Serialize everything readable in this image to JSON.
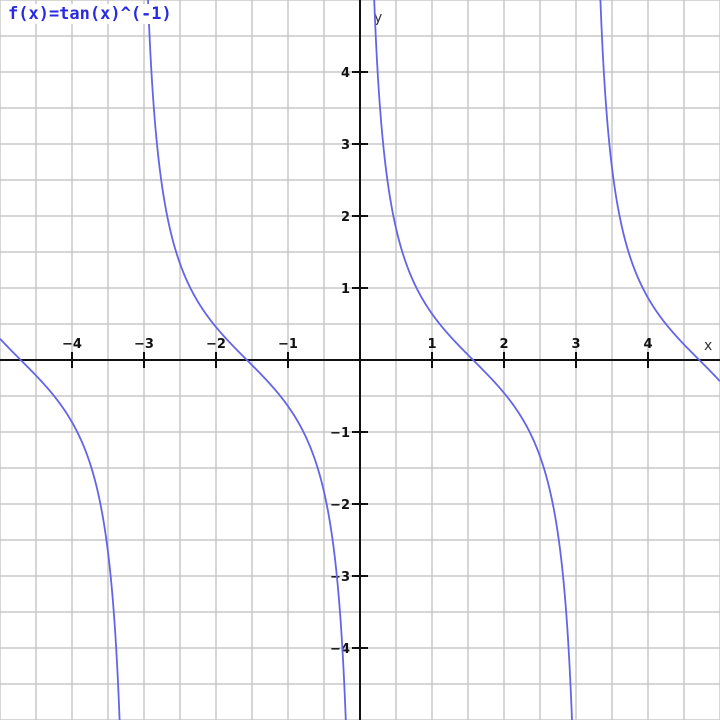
{
  "chart_data": {
    "type": "line",
    "title": "f(x)=tan(x)^(-1)",
    "xlabel": "x",
    "ylabel": "y",
    "xlim": [
      -5,
      5
    ],
    "ylim": [
      -5,
      5
    ],
    "grid": true,
    "grid_step": 0.5,
    "x_ticks": [
      -4,
      -3,
      -2,
      -1,
      1,
      2,
      3,
      4
    ],
    "y_ticks": [
      -4,
      -3,
      -2,
      -1,
      1,
      2,
      3,
      4
    ],
    "x_tick_labels": [
      "−4",
      "−3",
      "−2",
      "−1",
      "1",
      "2",
      "3",
      "4"
    ],
    "y_tick_labels": [
      "−4",
      "−3",
      "−2",
      "−1",
      "1",
      "2",
      "3",
      "4"
    ],
    "series": [
      {
        "function": "1/tan(x)",
        "color": "#6464e8"
      }
    ]
  }
}
